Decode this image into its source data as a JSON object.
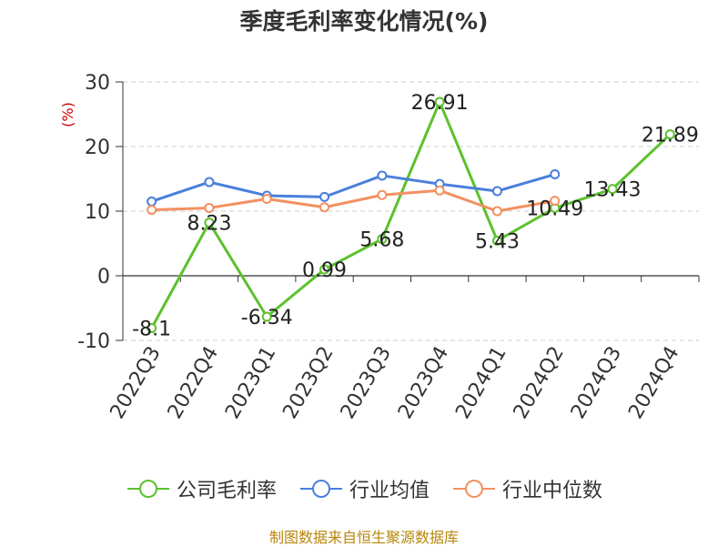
{
  "chart_data": {
    "type": "line",
    "title": "季度毛利率变化情况(%)",
    "ylabel": "(%)",
    "xlabel": "",
    "categories": [
      "2022Q3",
      "2022Q4",
      "2023Q1",
      "2023Q2",
      "2023Q3",
      "2023Q4",
      "2024Q1",
      "2024Q2",
      "2024Q3",
      "2024Q4"
    ],
    "y_ticks": [
      30,
      20,
      10,
      0,
      -10
    ],
    "ylim": [
      -10,
      30
    ],
    "grid": "horizontal dashed",
    "legend_position": "bottom",
    "series": [
      {
        "name": "公司毛利率",
        "color": "#5cc12e",
        "show_labels": true,
        "values": [
          -8.1,
          8.23,
          -6.34,
          0.99,
          5.68,
          26.91,
          5.43,
          10.49,
          13.43,
          21.89
        ]
      },
      {
        "name": "行业均值",
        "color": "#4a7fdc",
        "show_labels": false,
        "values": [
          11.5,
          14.5,
          12.4,
          12.2,
          15.5,
          14.2,
          13.1,
          15.7,
          null,
          null
        ]
      },
      {
        "name": "行业中位数",
        "color": "#f39061",
        "show_labels": false,
        "values": [
          10.2,
          10.5,
          11.9,
          10.6,
          12.5,
          13.2,
          10.0,
          11.6,
          null,
          null
        ]
      }
    ]
  },
  "footer": {
    "source": "制图数据来自恒生聚源数据库"
  },
  "colors": {
    "axis": "#333333",
    "grid": "#cccccc",
    "ylabel": "#cc0000",
    "source": "#b8860b"
  }
}
